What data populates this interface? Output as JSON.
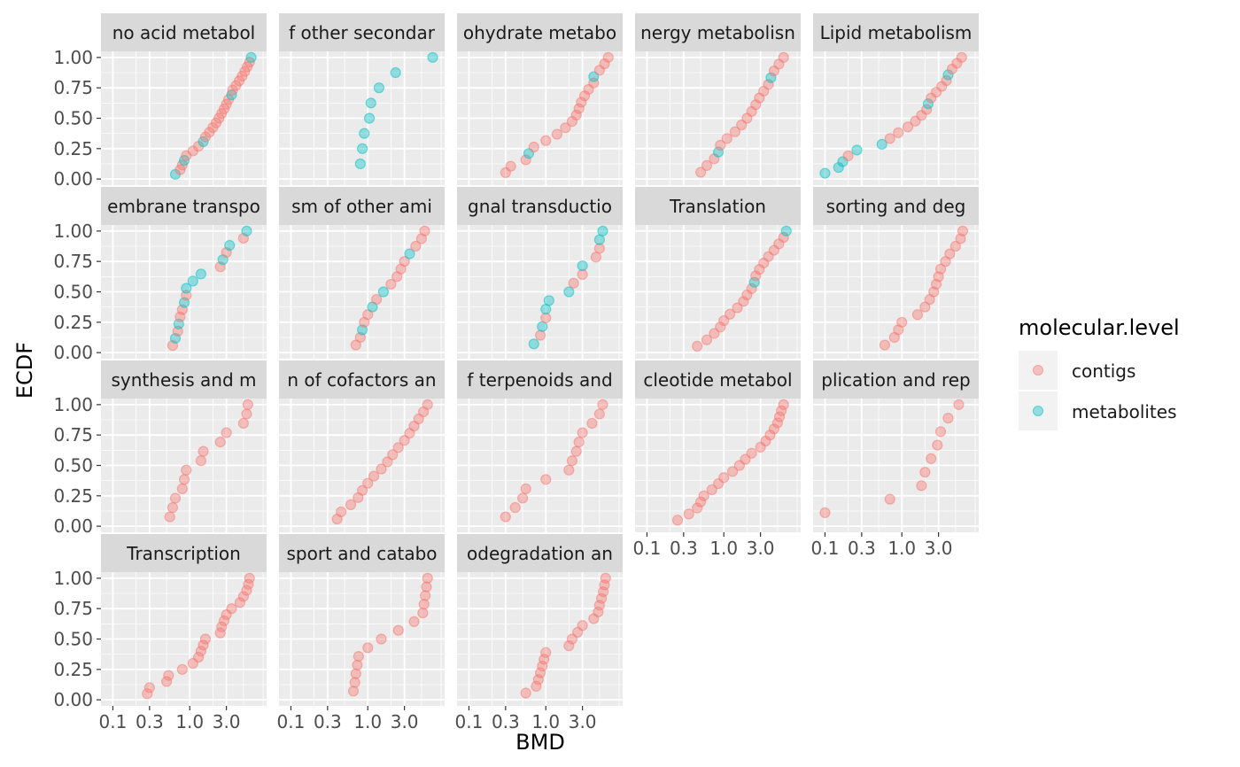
{
  "chart_data": {
    "type": "scatter",
    "x_scale": "log10",
    "xlim": [
      0.07,
      10.0
    ],
    "ylim": [
      -0.05,
      1.05
    ],
    "xlabel": "BMD",
    "ylabel": "ECDF",
    "x_ticks": [
      {
        "value": 0.1,
        "label": "0.1"
      },
      {
        "value": 0.3,
        "label": "0.3"
      },
      {
        "value": 1.0,
        "label": "1.0"
      },
      {
        "value": 3.0,
        "label": "3.0"
      }
    ],
    "y_ticks": [
      {
        "value": 0.0,
        "label": "0.00"
      },
      {
        "value": 0.25,
        "label": "0.25"
      },
      {
        "value": 0.5,
        "label": "0.50"
      },
      {
        "value": 0.75,
        "label": "0.75"
      },
      {
        "value": 1.0,
        "label": "1.00"
      }
    ],
    "legend": {
      "title": "molecular.level",
      "position": "right",
      "entries": [
        {
          "label": "contigs",
          "color": "#F8766D"
        },
        {
          "label": "metabolites",
          "color": "#00BFC4"
        }
      ]
    },
    "grid": true,
    "panels": [
      {
        "label": "no acid metabol",
        "contigs_x": [
          0.75,
          0.8,
          0.9,
          1.1,
          1.3,
          1.6,
          1.8,
          2.0,
          2.2,
          2.4,
          2.6,
          2.8,
          3.0,
          3.2,
          3.6,
          4.0,
          4.4,
          4.8,
          5.2,
          5.6,
          6.0
        ],
        "metabolites_x": [
          0.65,
          0.85,
          1.5,
          3.5,
          6.3
        ]
      },
      {
        "label": "f other secondar",
        "contigs_x": [],
        "metabolites_x": [
          0.8,
          0.85,
          0.9,
          1.05,
          1.1,
          1.4,
          2.3,
          7.0
        ]
      },
      {
        "label": "ohydrate metabo",
        "contigs_x": [
          0.3,
          0.35,
          0.55,
          0.7,
          1.0,
          1.4,
          1.8,
          2.2,
          2.5,
          2.7,
          2.9,
          3.2,
          3.6,
          4.2,
          5.0,
          5.8,
          6.5
        ],
        "metabolites_x": [
          0.6,
          4.2
        ]
      },
      {
        "label": "nergy metabolisn",
        "contigs_x": [
          0.5,
          0.6,
          0.75,
          0.9,
          1.1,
          1.4,
          1.7,
          2.0,
          2.3,
          2.6,
          2.9,
          3.3,
          3.8,
          4.5,
          5.2,
          6.0
        ],
        "metabolites_x": [
          0.85,
          4.1
        ]
      },
      {
        "label": "Lipid metabolism",
        "contigs_x": [
          0.2,
          0.7,
          0.9,
          1.2,
          1.5,
          1.8,
          2.1,
          2.4,
          2.8,
          3.3,
          3.8,
          4.5,
          5.2,
          6.0
        ],
        "metabolites_x": [
          0.1,
          0.15,
          0.17,
          0.26,
          0.55,
          2.2,
          4.0
        ]
      },
      {
        "label": "embrane transpo",
        "contigs_x": [
          0.6,
          0.7,
          0.75,
          0.8,
          0.9,
          2.5,
          3.0,
          5.0
        ],
        "metabolites_x": [
          0.65,
          0.72,
          0.85,
          0.9,
          1.1,
          1.4,
          2.7,
          3.3,
          5.5
        ]
      },
      {
        "label": "sm of other ami",
        "contigs_x": [
          0.7,
          0.8,
          0.9,
          1.0,
          1.3,
          2.0,
          2.4,
          2.7,
          3.0,
          4.2,
          5.0,
          5.5
        ],
        "metabolites_x": [
          0.85,
          1.15,
          1.6,
          3.5
        ]
      },
      {
        "label": "gnal transductio",
        "contigs_x": [
          0.85,
          1.0,
          2.3,
          3.0,
          4.5,
          5.0
        ],
        "metabolites_x": [
          0.7,
          0.9,
          1.0,
          1.1,
          2.0,
          3.0,
          5.0,
          5.5
        ]
      },
      {
        "label": "Translation",
        "contigs_x": [
          0.45,
          0.6,
          0.75,
          0.9,
          1.0,
          1.2,
          1.5,
          1.8,
          2.0,
          2.3,
          2.6,
          2.9,
          3.3,
          3.8,
          4.5,
          5.2,
          6.0
        ],
        "metabolites_x": [
          2.5,
          6.5
        ]
      },
      {
        "label": "sorting and deg",
        "contigs_x": [
          0.6,
          0.8,
          0.9,
          1.0,
          1.6,
          2.0,
          2.3,
          2.6,
          2.8,
          3.0,
          3.2,
          3.7,
          4.2,
          5.0,
          5.8,
          6.2
        ]
      },
      {
        "label": "synthesis and m",
        "contigs_x": [
          0.55,
          0.6,
          0.65,
          0.8,
          0.85,
          0.9,
          1.4,
          1.5,
          2.5,
          3.0,
          5.0,
          5.5,
          5.7
        ],
        "metabolites_x": []
      },
      {
        "label": "n of cofactors an",
        "contigs_x": [
          0.4,
          0.45,
          0.6,
          0.75,
          0.85,
          1.0,
          1.2,
          1.5,
          1.8,
          2.1,
          2.5,
          3.0,
          3.5,
          4.0,
          4.6,
          5.3,
          6.0
        ],
        "metabolites_x": []
      },
      {
        "label": "f terpenoids and",
        "contigs_x": [
          0.3,
          0.4,
          0.5,
          0.55,
          1.0,
          2.0,
          2.2,
          2.5,
          2.7,
          3.0,
          4.0,
          5.0,
          5.5
        ],
        "metabolites_x": []
      },
      {
        "label": "cleotide metabol",
        "contigs_x": [
          0.25,
          0.35,
          0.45,
          0.5,
          0.55,
          0.7,
          0.85,
          1.0,
          1.3,
          1.6,
          1.9,
          2.3,
          3.0,
          3.5,
          4.0,
          4.5,
          5.0,
          5.3,
          5.6,
          6.0
        ],
        "metabolites_x": []
      },
      {
        "label": "plication and rep",
        "contigs_x": [
          0.1,
          0.7,
          1.8,
          2.0,
          2.4,
          2.9,
          3.2,
          4.0,
          5.5
        ],
        "metabolites_x": []
      },
      {
        "label": "Transcription",
        "contigs_x": [
          0.28,
          0.3,
          0.5,
          0.53,
          0.8,
          1.1,
          1.3,
          1.4,
          1.5,
          1.6,
          2.5,
          2.6,
          2.8,
          3.0,
          3.5,
          4.5,
          5.0,
          5.5,
          5.8,
          6.0
        ],
        "metabolites_x": []
      },
      {
        "label": "sport and catabo",
        "contigs_x": [
          0.65,
          0.68,
          0.7,
          0.73,
          0.76,
          1.0,
          1.5,
          2.5,
          4.0,
          5.2,
          5.4,
          5.6,
          5.8,
          6.0
        ],
        "metabolites_x": []
      },
      {
        "label": "odegradation an",
        "contigs_x": [
          0.55,
          0.75,
          0.8,
          0.85,
          0.9,
          0.95,
          1.0,
          2.0,
          2.2,
          2.6,
          3.0,
          4.2,
          4.8,
          5.0,
          5.3,
          5.6,
          5.8,
          6.0
        ],
        "metabolites_x": []
      }
    ]
  }
}
